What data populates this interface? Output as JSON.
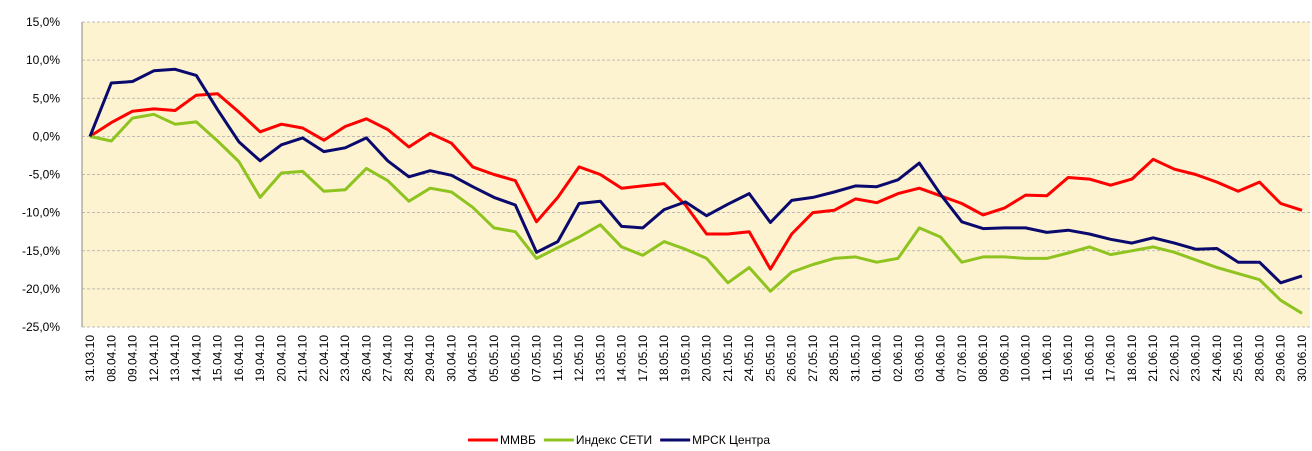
{
  "chart_data": {
    "type": "line",
    "categories": [
      "31.03.10",
      "08.04.10",
      "09.04.10",
      "12.04.10",
      "13.04.10",
      "14.04.10",
      "15.04.10",
      "16.04.10",
      "19.04.10",
      "20.04.10",
      "21.04.10",
      "22.04.10",
      "23.04.10",
      "26.04.10",
      "27.04.10",
      "28.04.10",
      "29.04.10",
      "30.04.10",
      "04.05.10",
      "05.05.10",
      "06.05.10",
      "07.05.10",
      "11.05.10",
      "12.05.10",
      "13.05.10",
      "14.05.10",
      "17.05.10",
      "18.05.10",
      "19.05.10",
      "20.05.10",
      "21.05.10",
      "24.05.10",
      "25.05.10",
      "26.05.10",
      "27.05.10",
      "28.05.10",
      "31.05.10",
      "01.06.10",
      "02.06.10",
      "03.06.10",
      "04.06.10",
      "07.06.10",
      "08.06.10",
      "09.06.10",
      "10.06.10",
      "11.06.10",
      "15.06.10",
      "16.06.10",
      "17.06.10",
      "18.06.10",
      "21.06.10",
      "22.06.10",
      "23.06.10",
      "24.06.10",
      "25.06.10",
      "28.06.10",
      "29.06.10",
      "30.06.10"
    ],
    "series": [
      {
        "name": "ММВБ",
        "color": "#ff0000",
        "values": [
          0,
          1.8,
          3.3,
          3.6,
          3.4,
          5.4,
          5.6,
          3.2,
          0.6,
          1.6,
          1.1,
          -0.5,
          1.3,
          2.3,
          0.9,
          -1.4,
          0.4,
          -0.9,
          -4.0,
          -5.0,
          -5.8,
          -11.2,
          -8.0,
          -4.0,
          -5.0,
          -6.8,
          -6.5,
          -6.2,
          -9.0,
          -12.8,
          -12.8,
          -12.5,
          -17.4,
          -12.8,
          -10.0,
          -9.7,
          -8.2,
          -8.7,
          -7.5,
          -6.8,
          -7.8,
          -8.8,
          -10.3,
          -9.4,
          -7.7,
          -7.8,
          -5.4,
          -5.6,
          -6.4,
          -5.6,
          -3.0,
          -4.3,
          -5.0,
          -6.0,
          -7.2,
          -6.0,
          -8.8,
          -9.7
        ]
      },
      {
        "name": "Индекс СЕТИ",
        "color": "#8fc31f",
        "values": [
          0,
          -0.6,
          2.4,
          2.9,
          1.6,
          1.9,
          -0.6,
          -3.3,
          -8.0,
          -4.8,
          -4.6,
          -7.2,
          -7.0,
          -4.2,
          -5.8,
          -8.5,
          -6.8,
          -7.3,
          -9.3,
          -12.0,
          -12.5,
          -16.0,
          -14.6,
          -13.2,
          -11.6,
          -14.5,
          -15.6,
          -13.8,
          -14.8,
          -16.0,
          -19.2,
          -17.2,
          -20.3,
          -17.8,
          -16.8,
          -16.0,
          -15.8,
          -16.5,
          -16.0,
          -12.0,
          -13.2,
          -16.5,
          -15.8,
          -15.8,
          -16.0,
          -16.0,
          -15.3,
          -14.5,
          -15.5,
          -15.0,
          -14.5,
          -15.2,
          -16.2,
          -17.2,
          -18.0,
          -18.8,
          -21.5,
          -23.2
        ]
      },
      {
        "name": "МРСК Центра",
        "color": "#0a0a6e",
        "values": [
          0,
          7.0,
          7.2,
          8.6,
          8.8,
          8.0,
          3.5,
          -0.7,
          -3.2,
          -1.1,
          -0.2,
          -2.0,
          -1.5,
          -0.2,
          -3.2,
          -5.3,
          -4.5,
          -5.1,
          -6.6,
          -8.0,
          -9.0,
          -15.2,
          -13.8,
          -8.8,
          -8.5,
          -11.8,
          -12.0,
          -9.6,
          -8.6,
          -10.4,
          -8.9,
          -7.5,
          -11.3,
          -8.4,
          -8.0,
          -7.3,
          -6.5,
          -6.6,
          -5.7,
          -3.5,
          -7.6,
          -11.2,
          -12.1,
          -12.0,
          -12.0,
          -12.6,
          -12.3,
          -12.8,
          -13.5,
          -14.0,
          -13.3,
          -14.0,
          -14.8,
          -14.7,
          -16.5,
          -16.5,
          -19.2,
          -18.3
        ]
      }
    ],
    "ylim": [
      -25,
      15
    ],
    "yticks": [
      {
        "value": 15,
        "label": "15,0%"
      },
      {
        "value": 10,
        "label": "10,0%"
      },
      {
        "value": 5,
        "label": "5,0%"
      },
      {
        "value": 0,
        "label": "0,0%"
      },
      {
        "value": -5,
        "label": "-5,0%"
      },
      {
        "value": -10,
        "label": "-10,0%"
      },
      {
        "value": -15,
        "label": "-15,0%"
      },
      {
        "value": -20,
        "label": "-20,0%"
      },
      {
        "value": -25,
        "label": "-25,0%"
      }
    ],
    "grid": true,
    "legend": "bottom",
    "background": "#fdf3d0"
  }
}
